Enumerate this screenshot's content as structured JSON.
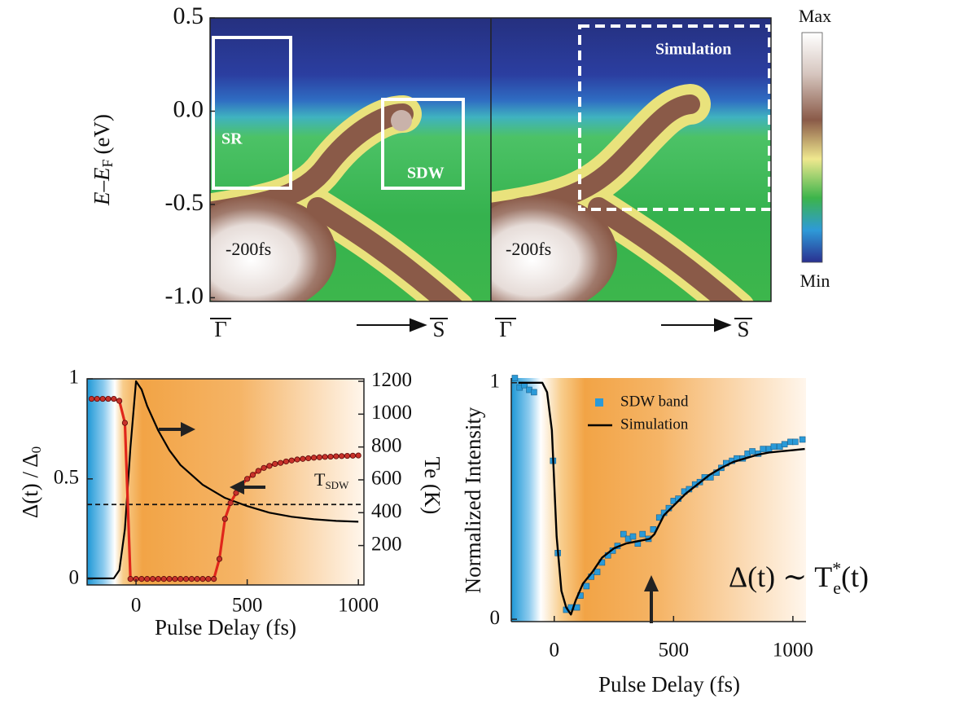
{
  "chart_data": [
    {
      "type": "heatmap",
      "ylabel": {
        "main": "E–E",
        "sub": "F",
        "unit": "(eV)"
      },
      "ylim": [
        -1.02,
        0.5
      ],
      "yticks": [
        0.5,
        {
          "value": 0,
          "label": "0.0"
        },
        -0.5,
        {
          "value": -1,
          "label": "-1.0"
        }
      ],
      "xlabels": [
        "Γ",
        "S",
        "Γ",
        "S"
      ],
      "colorbar": {
        "max": "Max",
        "min": "Min"
      },
      "annotations": [
        "SR",
        "SDW",
        "-200fs",
        "Simulation",
        "-200fs"
      ]
    },
    {
      "type": "line",
      "xlabel": "Pulse Delay (fs)",
      "ylabel": {
        "main": "Δ(t) / Δ",
        "sub": "0"
      },
      "y2label": "Te (K)",
      "xlim": [
        -220,
        1025
      ],
      "ylim": [
        -0.03,
        1.0
      ],
      "y2lim": [
        -40,
        1215
      ],
      "xticks": [
        0,
        500,
        1000
      ],
      "yticks": [
        0,
        0.5,
        1
      ],
      "y2ticks": [
        200,
        400,
        600,
        800,
        1000,
        1200
      ],
      "threshold": {
        "value": 450,
        "axis": "y2",
        "label": "T",
        "sub": "SDW"
      },
      "series": [
        {
          "axis": "y2",
          "kind": "line",
          "color": "#000000",
          "x": [
            -220,
            -100,
            -75,
            -50,
            -25,
            0,
            25,
            50,
            100,
            150,
            200,
            300,
            400,
            500,
            600,
            700,
            800,
            900,
            1000
          ],
          "values": [
            0,
            0,
            50,
            300,
            800,
            1200,
            1150,
            1050,
            900,
            780,
            690,
            570,
            490,
            440,
            400,
            375,
            360,
            350,
            345
          ]
        },
        {
          "axis": "y",
          "kind": "line-markers",
          "color": "#e0261b",
          "x": [
            -200,
            -175,
            -150,
            -125,
            -100,
            -75,
            -50,
            -25,
            0,
            25,
            50,
            75,
            100,
            125,
            150,
            175,
            200,
            225,
            250,
            275,
            300,
            325,
            350,
            375,
            400,
            425,
            450,
            475,
            500,
            525,
            550,
            575,
            600,
            625,
            650,
            675,
            700,
            725,
            750,
            775,
            800,
            825,
            850,
            875,
            900,
            925,
            950,
            975,
            1000
          ],
          "values": [
            0.9,
            0.9,
            0.9,
            0.9,
            0.9,
            0.89,
            0.78,
            0,
            0,
            0,
            0,
            0,
            0,
            0,
            0,
            0,
            0,
            0,
            0,
            0,
            0,
            0,
            0,
            0.1,
            0.3,
            0.38,
            0.43,
            0.47,
            0.5,
            0.52,
            0.54,
            0.555,
            0.565,
            0.575,
            0.58,
            0.587,
            0.592,
            0.597,
            0.6,
            0.603,
            0.606,
            0.608,
            0.61,
            0.611,
            0.613,
            0.614,
            0.615,
            0.616,
            0.617
          ]
        }
      ]
    },
    {
      "type": "scatter",
      "xlabel": "Pulse Delay (fs)",
      "ylabel": "Normalized Intensity",
      "xlim": [
        -180,
        1055
      ],
      "ylim": [
        -0.01,
        1.02
      ],
      "xticks": [
        0,
        500,
        1000
      ],
      "yticks": [
        0,
        1
      ],
      "annotation": {
        "main": "Δ(t) ∼ T",
        "sup": "*",
        "sub": "e",
        "tail": "(t)"
      },
      "series": [
        {
          "name": "SDW band",
          "kind": "markers",
          "color": "#2a9ad8",
          "x": [
            -165,
            -145,
            -125,
            -105,
            -85,
            -5,
            15,
            50,
            70,
            95,
            110,
            135,
            155,
            180,
            200,
            225,
            245,
            265,
            290,
            310,
            330,
            350,
            370,
            395,
            415,
            440,
            460,
            480,
            500,
            520,
            545,
            565,
            590,
            610,
            630,
            655,
            680,
            700,
            720,
            745,
            765,
            790,
            810,
            830,
            855,
            875,
            900,
            920,
            945,
            965,
            990,
            1010,
            1040
          ],
          "values": [
            1.02,
            0.98,
            0.99,
            0.97,
            0.96,
            0.67,
            0.28,
            0.04,
            0.05,
            0.05,
            0.1,
            0.14,
            0.18,
            0.2,
            0.24,
            0.27,
            0.29,
            0.31,
            0.36,
            0.34,
            0.35,
            0.32,
            0.36,
            0.34,
            0.38,
            0.43,
            0.45,
            0.47,
            0.5,
            0.51,
            0.54,
            0.55,
            0.57,
            0.58,
            0.6,
            0.6,
            0.62,
            0.64,
            0.66,
            0.67,
            0.68,
            0.68,
            0.7,
            0.71,
            0.7,
            0.72,
            0.72,
            0.73,
            0.73,
            0.74,
            0.75,
            0.75,
            0.76
          ]
        },
        {
          "name": "Simulation",
          "kind": "line",
          "color": "#000000",
          "x": [
            -150,
            -50,
            -30,
            -10,
            10,
            30,
            50,
            70,
            90,
            120,
            160,
            200,
            250,
            300,
            350,
            400,
            420,
            440,
            460,
            500,
            550,
            600,
            650,
            700,
            750,
            800,
            850,
            900,
            950,
            1000,
            1050
          ],
          "values": [
            1.0,
            1.0,
            0.96,
            0.8,
            0.35,
            0.12,
            0.05,
            0.02,
            0.08,
            0.15,
            0.2,
            0.26,
            0.3,
            0.32,
            0.33,
            0.34,
            0.36,
            0.4,
            0.44,
            0.48,
            0.53,
            0.57,
            0.61,
            0.64,
            0.665,
            0.68,
            0.695,
            0.705,
            0.71,
            0.715,
            0.72
          ]
        }
      ]
    }
  ]
}
